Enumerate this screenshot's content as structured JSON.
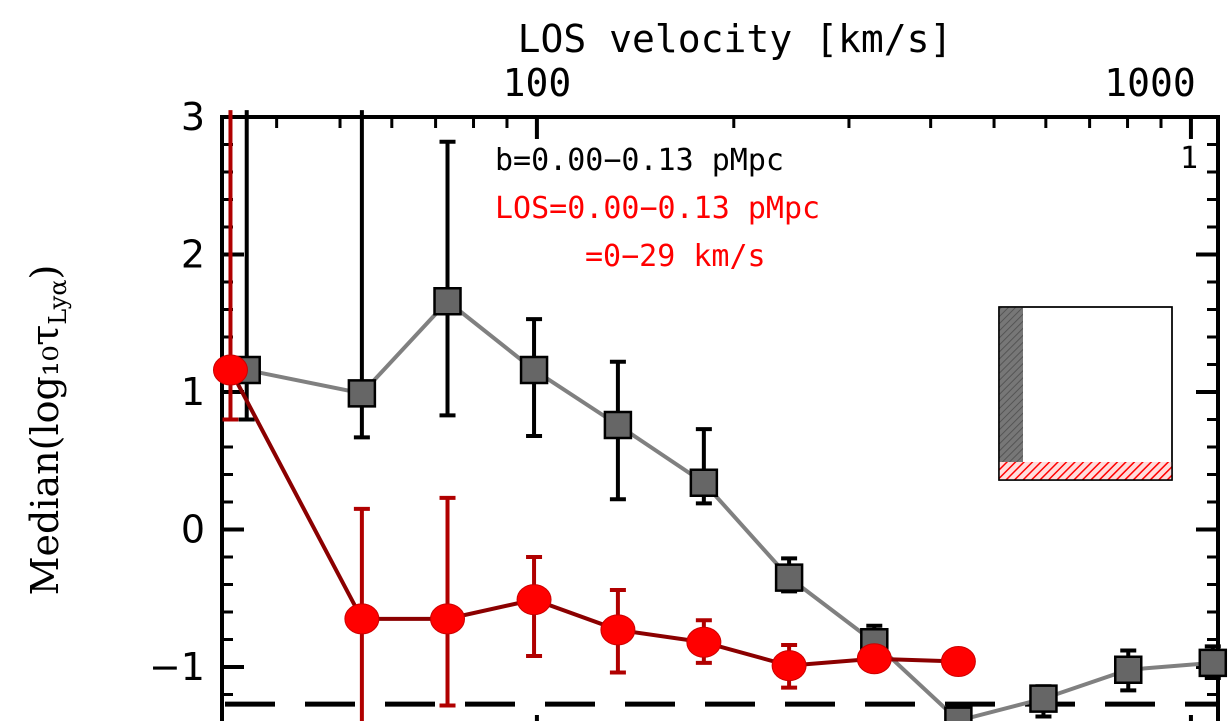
{
  "chart_data": {
    "type": "scatter",
    "top_axis": {
      "label": "LOS velocity [km/s]",
      "scale": "log",
      "ticks": [
        {
          "value": 100,
          "label": "100"
        },
        {
          "value": 1000,
          "label": "1000"
        }
      ]
    },
    "ylabel": "Median(log₁₀τ",
    "ylabel_sub": "Lyα",
    "ylabel_close": ")",
    "ylim": [
      -1.35,
      3.0
    ],
    "yticks": [
      {
        "value": 3,
        "label": "3"
      },
      {
        "value": 2,
        "label": "2"
      },
      {
        "value": 1,
        "label": "1"
      },
      {
        "value": 0,
        "label": "0"
      },
      {
        "value": -1,
        "label": "−1"
      }
    ],
    "xlim_velocity": [
      33,
      1100
    ],
    "annotations": {
      "line1": "b=0.00−0.13 pMpc",
      "line2": "LOS=0.00−0.13 pMpc",
      "line3": "=0−29 km/s",
      "panel_number": "1",
      "line2_color": "#ff0000",
      "line3_color": "#ff0000"
    },
    "reference_level": -1.27,
    "series": [
      {
        "color": "#555555",
        "marker": "square",
        "points": [
          {
            "v": 36,
            "y": 1.16,
            "lo": 0.8,
            "hi": 3.05
          },
          {
            "v": 54,
            "y": 0.99,
            "lo": 0.67,
            "hi": 3.05
          },
          {
            "v": 73,
            "y": 1.66,
            "lo": 0.83,
            "hi": 2.82
          },
          {
            "v": 99,
            "y": 1.16,
            "lo": 0.68,
            "hi": 1.53
          },
          {
            "v": 133,
            "y": 0.76,
            "lo": 0.22,
            "hi": 1.22
          },
          {
            "v": 180,
            "y": 0.34,
            "lo": 0.19,
            "hi": 0.73
          },
          {
            "v": 243,
            "y": -0.35,
            "lo": -0.45,
            "hi": -0.21
          },
          {
            "v": 328,
            "y": -0.82,
            "lo": -0.95,
            "hi": -0.7
          },
          {
            "v": 441,
            "y": -1.39,
            "lo": -1.5,
            "hi": -1.28
          },
          {
            "v": 595,
            "y": -1.23,
            "lo": -1.36,
            "hi": -1.14
          },
          {
            "v": 802,
            "y": -1.02,
            "lo": -1.17,
            "hi": -0.88
          },
          {
            "v": 1080,
            "y": -0.97,
            "lo": -1.08,
            "hi": -0.85
          }
        ]
      },
      {
        "color": "#ff0000",
        "line_color": "#8b0000",
        "marker": "circle",
        "points": [
          {
            "v": 34,
            "y": 1.16,
            "lo": 0.8,
            "hi": 3.05
          },
          {
            "v": 54,
            "y": -0.65,
            "lo": -1.5,
            "hi": 0.15
          },
          {
            "v": 73,
            "y": -0.65,
            "lo": -1.28,
            "hi": 0.23
          },
          {
            "v": 99,
            "y": -0.51,
            "lo": -0.92,
            "hi": -0.2
          },
          {
            "v": 133,
            "y": -0.73,
            "lo": -1.04,
            "hi": -0.44
          },
          {
            "v": 180,
            "y": -0.82,
            "lo": -0.97,
            "hi": -0.66
          },
          {
            "v": 243,
            "y": -0.99,
            "lo": -1.15,
            "hi": -0.84
          },
          {
            "v": 328,
            "y": -0.94,
            "lo": -1.0,
            "hi": -0.86
          },
          {
            "v": 441,
            "y": -0.96,
            "lo": -1.0,
            "hi": -0.9
          }
        ]
      }
    ],
    "inset": {
      "description_colors": {
        "column": "#666666",
        "band": "#ff0000"
      }
    }
  }
}
